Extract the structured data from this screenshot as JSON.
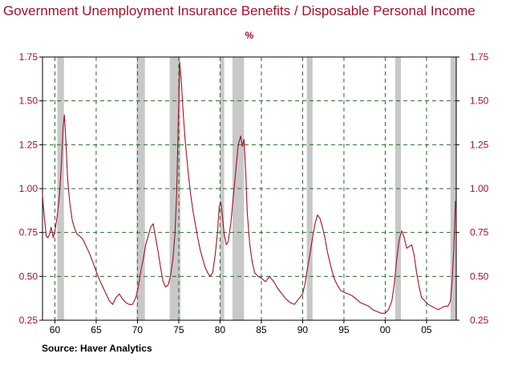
{
  "chart_data": {
    "type": "line",
    "title": "Government Unemployment Insurance Benefits / Disposable Personal Income",
    "unit": "%",
    "source": "Source: Haver Analytics",
    "ylim": [
      0.25,
      1.75
    ],
    "xlim": [
      1958.5,
      2008.6
    ],
    "yticks": [
      {
        "value": 0.25,
        "label": "0.25"
      },
      {
        "value": 0.5,
        "label": "0.50"
      },
      {
        "value": 0.75,
        "label": "0.75"
      },
      {
        "value": 1.0,
        "label": "1.00"
      },
      {
        "value": 1.25,
        "label": "1.25"
      },
      {
        "value": 1.5,
        "label": "1.50"
      },
      {
        "value": 1.75,
        "label": "1.75"
      }
    ],
    "xticks": [
      {
        "value": 1960,
        "label": "60"
      },
      {
        "value": 1965,
        "label": "65"
      },
      {
        "value": 1970,
        "label": "70"
      },
      {
        "value": 1975,
        "label": "75"
      },
      {
        "value": 1980,
        "label": "80"
      },
      {
        "value": 1985,
        "label": "85"
      },
      {
        "value": 1990,
        "label": "90"
      },
      {
        "value": 1995,
        "label": "95"
      },
      {
        "value": 2000,
        "label": "00"
      },
      {
        "value": 2005,
        "label": "05"
      }
    ],
    "grid": true,
    "grid_style": "dashed",
    "colors": {
      "line": "#a0102a",
      "grid": "#2a6a2a",
      "recession": "#c8c8c8",
      "axis": "#000000"
    },
    "recessions": [
      [
        1960.3,
        1961.1
      ],
      [
        1969.9,
        1970.9
      ],
      [
        1973.9,
        1975.2
      ],
      [
        1980.0,
        1980.5
      ],
      [
        1981.5,
        1982.9
      ],
      [
        1990.5,
        1991.2
      ],
      [
        2001.2,
        2001.9
      ],
      [
        2007.9,
        2008.6
      ]
    ],
    "series": [
      {
        "x": [
          1958.5,
          1958.6,
          1958.8,
          1958.95,
          1959.15,
          1959.35,
          1959.55,
          1959.8,
          1960.05,
          1960.3,
          1960.55,
          1960.8,
          1961.0,
          1961.15,
          1961.35,
          1961.55,
          1961.8,
          1962.1,
          1962.4,
          1962.7,
          1963.0,
          1963.4,
          1963.8,
          1964.2,
          1964.6,
          1965.0,
          1965.4,
          1965.8,
          1966.2,
          1966.6,
          1967.0,
          1967.4,
          1967.8,
          1968.2,
          1968.6,
          1969.0,
          1969.4,
          1969.8,
          1970.1,
          1970.4,
          1970.7,
          1971.0,
          1971.3,
          1971.6,
          1971.9,
          1972.2,
          1972.5,
          1972.8,
          1973.1,
          1973.4,
          1973.7,
          1974.0,
          1974.3,
          1974.55,
          1974.75,
          1974.95,
          1975.1,
          1975.3,
          1975.55,
          1975.8,
          1976.1,
          1976.4,
          1976.7,
          1977.0,
          1977.3,
          1977.6,
          1977.9,
          1978.2,
          1978.5,
          1978.8,
          1979.1,
          1979.4,
          1979.7,
          1979.9,
          1980.1,
          1980.3,
          1980.5,
          1980.75,
          1981.0,
          1981.3,
          1981.6,
          1981.9,
          1982.2,
          1982.5,
          1982.7,
          1982.9,
          1983.1,
          1983.3,
          1983.6,
          1983.9,
          1984.2,
          1984.6,
          1985.0,
          1985.5,
          1986.0,
          1986.5,
          1987.0,
          1987.5,
          1988.0,
          1988.5,
          1989.0,
          1989.5,
          1990.0,
          1990.3,
          1990.6,
          1990.9,
          1991.2,
          1991.5,
          1991.8,
          1992.1,
          1992.4,
          1992.7,
          1993.0,
          1993.4,
          1993.8,
          1994.2,
          1994.6,
          1995.0,
          1995.5,
          1996.0,
          1996.5,
          1997.0,
          1997.5,
          1998.0,
          1998.5,
          1999.0,
          1999.5,
          2000.0,
          2000.4,
          2000.8,
          2001.1,
          2001.4,
          2001.7,
          2002.0,
          2002.3,
          2002.6,
          2002.9,
          2003.2,
          2003.5,
          2003.8,
          2004.1,
          2004.4,
          2004.8,
          2005.2,
          2005.6,
          2006.0,
          2006.4,
          2006.8,
          2007.2,
          2007.6,
          2007.9,
          2008.1,
          2008.3,
          2008.5
        ],
        "y": [
          0.97,
          0.9,
          0.8,
          0.73,
          0.72,
          0.74,
          0.78,
          0.72,
          0.77,
          0.85,
          0.96,
          1.15,
          1.35,
          1.42,
          1.25,
          1.05,
          0.92,
          0.82,
          0.77,
          0.74,
          0.73,
          0.71,
          0.67,
          0.63,
          0.58,
          0.53,
          0.48,
          0.44,
          0.4,
          0.36,
          0.34,
          0.38,
          0.4,
          0.37,
          0.35,
          0.34,
          0.34,
          0.38,
          0.44,
          0.53,
          0.6,
          0.68,
          0.73,
          0.78,
          0.8,
          0.72,
          0.64,
          0.55,
          0.47,
          0.44,
          0.45,
          0.5,
          0.6,
          0.75,
          0.98,
          1.4,
          1.72,
          1.62,
          1.42,
          1.26,
          1.11,
          0.98,
          0.88,
          0.8,
          0.72,
          0.65,
          0.6,
          0.55,
          0.52,
          0.5,
          0.52,
          0.62,
          0.75,
          0.9,
          0.92,
          0.84,
          0.74,
          0.68,
          0.7,
          0.8,
          0.95,
          1.1,
          1.25,
          1.3,
          1.24,
          1.28,
          1.1,
          0.86,
          0.68,
          0.58,
          0.52,
          0.5,
          0.49,
          0.47,
          0.5,
          0.47,
          0.43,
          0.4,
          0.37,
          0.35,
          0.34,
          0.37,
          0.4,
          0.46,
          0.55,
          0.63,
          0.72,
          0.8,
          0.85,
          0.83,
          0.78,
          0.72,
          0.64,
          0.56,
          0.49,
          0.45,
          0.42,
          0.41,
          0.4,
          0.39,
          0.37,
          0.35,
          0.34,
          0.33,
          0.31,
          0.3,
          0.29,
          0.29,
          0.31,
          0.36,
          0.46,
          0.6,
          0.71,
          0.76,
          0.72,
          0.66,
          0.67,
          0.68,
          0.62,
          0.52,
          0.44,
          0.38,
          0.36,
          0.34,
          0.33,
          0.32,
          0.31,
          0.32,
          0.33,
          0.33,
          0.36,
          0.48,
          0.65,
          0.93
        ]
      }
    ]
  }
}
